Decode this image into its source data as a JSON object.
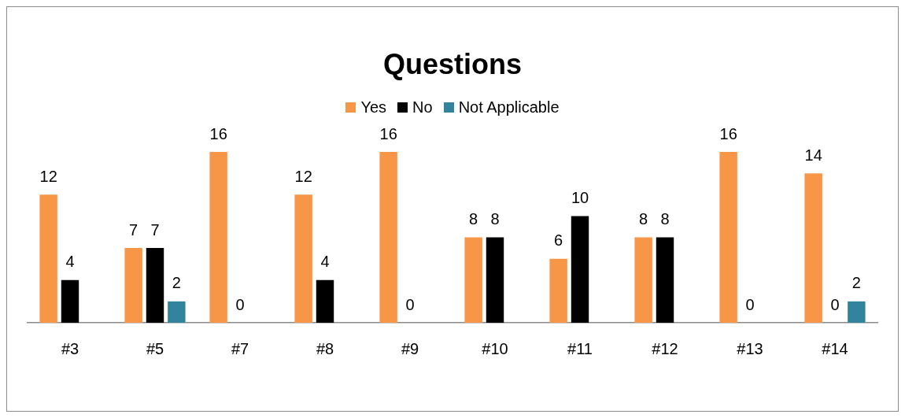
{
  "chart_data": {
    "type": "bar",
    "title": "Questions",
    "categories": [
      "#3",
      "#5",
      "#7",
      "#8",
      "#9",
      "#10",
      "#11",
      "#12",
      "#13",
      "#14"
    ],
    "series": [
      {
        "name": "Yes",
        "color": "#f79646",
        "values": [
          12,
          7,
          16,
          12,
          16,
          8,
          6,
          8,
          16,
          14
        ],
        "value_labels": [
          "12",
          "7",
          "16",
          "12",
          "16",
          "8",
          "6",
          "8",
          "16",
          "14"
        ]
      },
      {
        "name": "No",
        "color": "#000000",
        "values": [
          4,
          7,
          0,
          4,
          0,
          8,
          10,
          8,
          0,
          0
        ],
        "value_labels": [
          "4",
          "7",
          "0",
          "4",
          "0",
          "8",
          "10",
          "8",
          "0",
          "0"
        ]
      },
      {
        "name": "Not Applicable",
        "color": "#31849b",
        "values": [
          null,
          2,
          null,
          null,
          null,
          null,
          null,
          null,
          null,
          2
        ],
        "value_labels": [
          null,
          "2",
          null,
          null,
          null,
          null,
          null,
          null,
          null,
          "2"
        ]
      }
    ],
    "legend": "top",
    "grid": false
  }
}
